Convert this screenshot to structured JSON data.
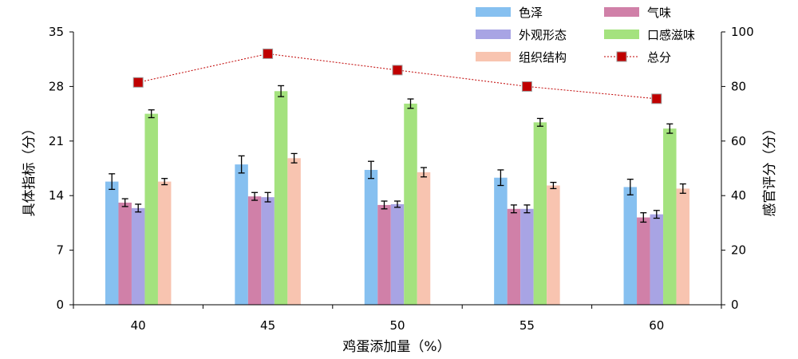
{
  "chart_data": {
    "type": "bar",
    "categories": [
      "40",
      "45",
      "50",
      "55",
      "60"
    ],
    "xlabel": "鸡蛋添加量（%）",
    "ylabel": "具体指标（分）",
    "ylim": [
      0,
      35
    ],
    "yticks": [
      "0",
      "7",
      "14",
      "21",
      "28",
      "35"
    ],
    "y2label": "感官评分（分）",
    "y2lim": [
      0,
      100
    ],
    "y2ticks": [
      "0",
      "20",
      "40",
      "60",
      "80",
      "100"
    ],
    "legend_position": "top-right",
    "grid": false,
    "series": [
      {
        "name": "色泽",
        "color": "#86c0f0",
        "values": [
          15.8,
          18.0,
          17.3,
          16.3,
          15.1
        ],
        "errors": [
          1.0,
          1.1,
          1.1,
          1.0,
          1.0
        ]
      },
      {
        "name": "气味",
        "color": "#d080a8",
        "values": [
          13.1,
          13.9,
          12.8,
          12.3,
          11.2
        ],
        "errors": [
          0.5,
          0.5,
          0.5,
          0.5,
          0.6
        ]
      },
      {
        "name": "外观形态",
        "color": "#a8a4e4",
        "values": [
          12.4,
          13.8,
          12.9,
          12.3,
          11.6
        ],
        "errors": [
          0.5,
          0.6,
          0.4,
          0.5,
          0.5
        ]
      },
      {
        "name": "口感滋味",
        "color": "#a4e27e",
        "values": [
          24.5,
          27.4,
          25.8,
          23.4,
          22.6
        ],
        "errors": [
          0.5,
          0.7,
          0.6,
          0.5,
          0.6
        ]
      },
      {
        "name": "组织结构",
        "color": "#f8c4b0",
        "values": [
          15.8,
          18.8,
          17.0,
          15.3,
          14.9
        ],
        "errors": [
          0.4,
          0.6,
          0.6,
          0.4,
          0.6
        ]
      }
    ],
    "line_series": {
      "name": "总分",
      "axis": "right",
      "color": "#c00000",
      "values": [
        81.5,
        92.0,
        86.0,
        80.0,
        75.5
      ]
    }
  }
}
